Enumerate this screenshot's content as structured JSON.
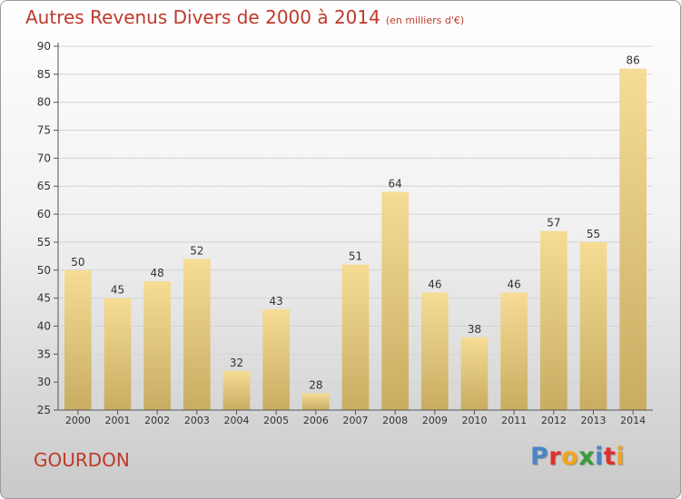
{
  "header": {
    "title": "Autres Revenus Divers de 2000 à 2014",
    "subtitle": "(en milliers d'€)"
  },
  "footer": {
    "city": "GOURDON",
    "logo_letters": [
      "P",
      "r",
      "o",
      "x",
      "i",
      "t",
      "i"
    ],
    "logo_colors": [
      "#4a86c5",
      "#e0302a",
      "#f2a41f",
      "#3a9b3a",
      "#4a86c5",
      "#e0302a",
      "#f2a41f"
    ]
  },
  "colors": {
    "title": "#c0392b",
    "bar_top": "#f6dc94",
    "bar_bottom": "#c8ac62",
    "axis": "#555555",
    "grid": "#d3d3d3"
  },
  "chart_data": {
    "type": "bar",
    "categories": [
      "2000",
      "2001",
      "2002",
      "2003",
      "2004",
      "2005",
      "2006",
      "2007",
      "2008",
      "2009",
      "2010",
      "2011",
      "2012",
      "2013",
      "2014"
    ],
    "values": [
      50,
      45,
      48,
      52,
      32,
      43,
      28,
      51,
      64,
      46,
      38,
      46,
      57,
      55,
      86
    ],
    "ylim": [
      25,
      90
    ],
    "yticks": [
      25,
      30,
      35,
      40,
      45,
      50,
      55,
      60,
      65,
      70,
      75,
      80,
      85,
      90
    ],
    "grid": true,
    "data_labels": true
  }
}
